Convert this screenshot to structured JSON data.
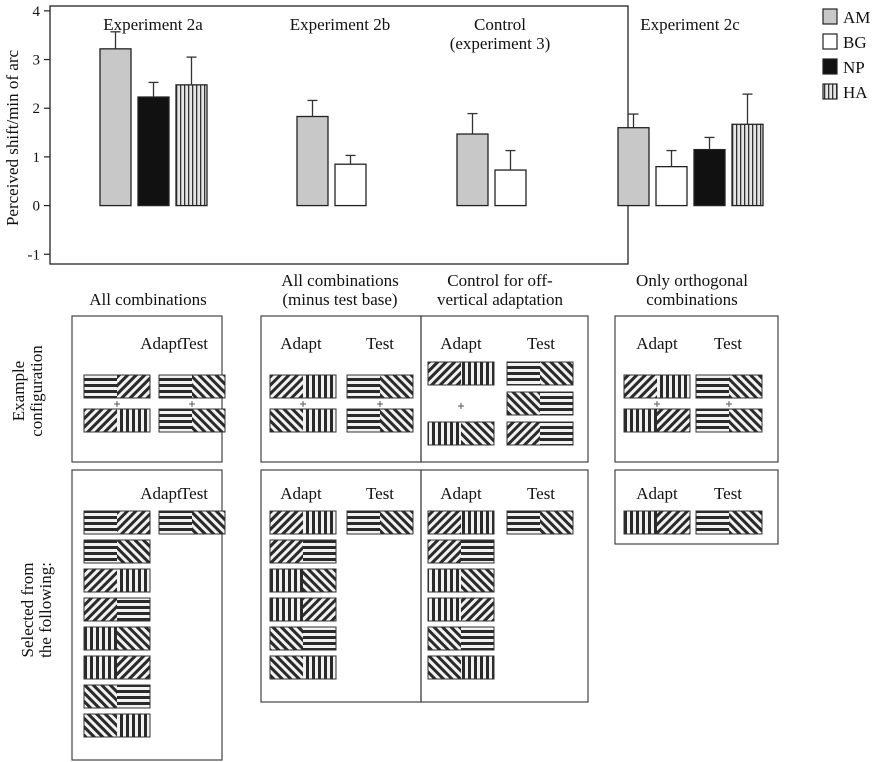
{
  "chart_data": {
    "type": "bar",
    "ylabel": "Perceived shift/min of arc",
    "ylim": [
      -1.2,
      4.1
    ],
    "yticks": [
      "-1",
      "0",
      "1",
      "2",
      "3",
      "4"
    ],
    "grid": false,
    "legend_placement": "top-right",
    "legend": [
      {
        "name": "AM",
        "pattern": "light-gray"
      },
      {
        "name": "BG",
        "pattern": "white"
      },
      {
        "name": "NP",
        "pattern": "black"
      },
      {
        "name": "HA",
        "pattern": "vertical-stripes"
      }
    ],
    "groups": [
      {
        "label_lines": [
          "Experiment 2a"
        ],
        "bars": [
          {
            "series": "AM",
            "value": 3.22,
            "err": 0.35
          },
          {
            "series": "NP",
            "value": 2.23,
            "err": 0.3
          },
          {
            "series": "HA",
            "value": 2.48,
            "err": 0.57
          }
        ]
      },
      {
        "label_lines": [
          "Experiment 2b"
        ],
        "bars": [
          {
            "series": "AM",
            "value": 1.83,
            "err": 0.33
          },
          {
            "series": "BG",
            "value": 0.85,
            "err": 0.18
          }
        ]
      },
      {
        "label_lines": [
          "Control",
          "(experiment 3)"
        ],
        "bars": [
          {
            "series": "AM",
            "value": 1.47,
            "err": 0.42
          },
          {
            "series": "BG",
            "value": 0.73,
            "err": 0.4
          }
        ]
      },
      {
        "label_lines": [
          "Experiment 2c"
        ],
        "bars": [
          {
            "series": "AM",
            "value": 1.6,
            "err": 0.28
          },
          {
            "series": "BG",
            "value": 0.8,
            "err": 0.33
          },
          {
            "series": "NP",
            "value": 1.15,
            "err": 0.25
          },
          {
            "series": "HA",
            "value": 1.67,
            "err": 0.62
          }
        ]
      }
    ]
  },
  "diagram": {
    "row_labels": {
      "example": [
        "Example",
        "configuration"
      ],
      "selected": [
        "Selected from",
        "the following:"
      ]
    },
    "adapt_label": "Adapt",
    "test_label": "Test",
    "panels": [
      {
        "heading": [
          "All combinations"
        ],
        "example": {
          "adapt": [
            [
              "H",
              "D"
            ],
            [
              "D",
              "V"
            ]
          ],
          "test": [
            [
              "H",
              "A"
            ],
            [
              "H",
              "A"
            ]
          ]
        },
        "selected_adapt": [
          [
            "H",
            "D"
          ],
          [
            "H",
            "A"
          ],
          [
            "D",
            "V"
          ],
          [
            "D",
            "H"
          ],
          [
            "V",
            "A"
          ],
          [
            "V",
            "D"
          ],
          [
            "A",
            "H"
          ],
          [
            "A",
            "V"
          ]
        ],
        "selected_test": [
          "H",
          "A"
        ]
      },
      {
        "heading": [
          "All combinations",
          "(minus test base)"
        ],
        "example": {
          "adapt": [
            [
              "D",
              "V"
            ],
            [
              "A",
              "V"
            ]
          ],
          "test": [
            [
              "H",
              "A"
            ],
            [
              "H",
              "A"
            ]
          ]
        },
        "selected_adapt": [
          [
            "D",
            "V"
          ],
          [
            "D",
            "H"
          ],
          [
            "V",
            "A"
          ],
          [
            "V",
            "D"
          ],
          [
            "A",
            "H"
          ],
          [
            "A",
            "V"
          ]
        ],
        "selected_test": [
          "H",
          "A"
        ]
      },
      {
        "heading": [
          "Control for off-",
          "vertical adaptation"
        ],
        "example": {
          "adapt": [
            [
              "D",
              "V"
            ],
            [
              "V",
              "A"
            ]
          ],
          "test": [
            [
              "H",
              "A"
            ],
            [
              "A",
              "H"
            ],
            [
              "D",
              "H"
            ]
          ]
        },
        "selected_adapt": [
          [
            "D",
            "V"
          ],
          [
            "D",
            "H"
          ],
          [
            "V",
            "A"
          ],
          [
            "V",
            "D"
          ],
          [
            "A",
            "H"
          ],
          [
            "A",
            "V"
          ]
        ],
        "selected_test": [
          "H",
          "A"
        ]
      },
      {
        "heading": [
          "Only orthogonal",
          "combinations"
        ],
        "example": {
          "adapt": [
            [
              "D",
              "V"
            ],
            [
              "V",
              "D"
            ]
          ],
          "test": [
            [
              "H",
              "A"
            ],
            [
              "H",
              "A"
            ]
          ]
        },
        "selected_adapt": [
          [
            "V",
            "D"
          ]
        ],
        "selected_test": [
          "H",
          "A"
        ]
      }
    ]
  }
}
